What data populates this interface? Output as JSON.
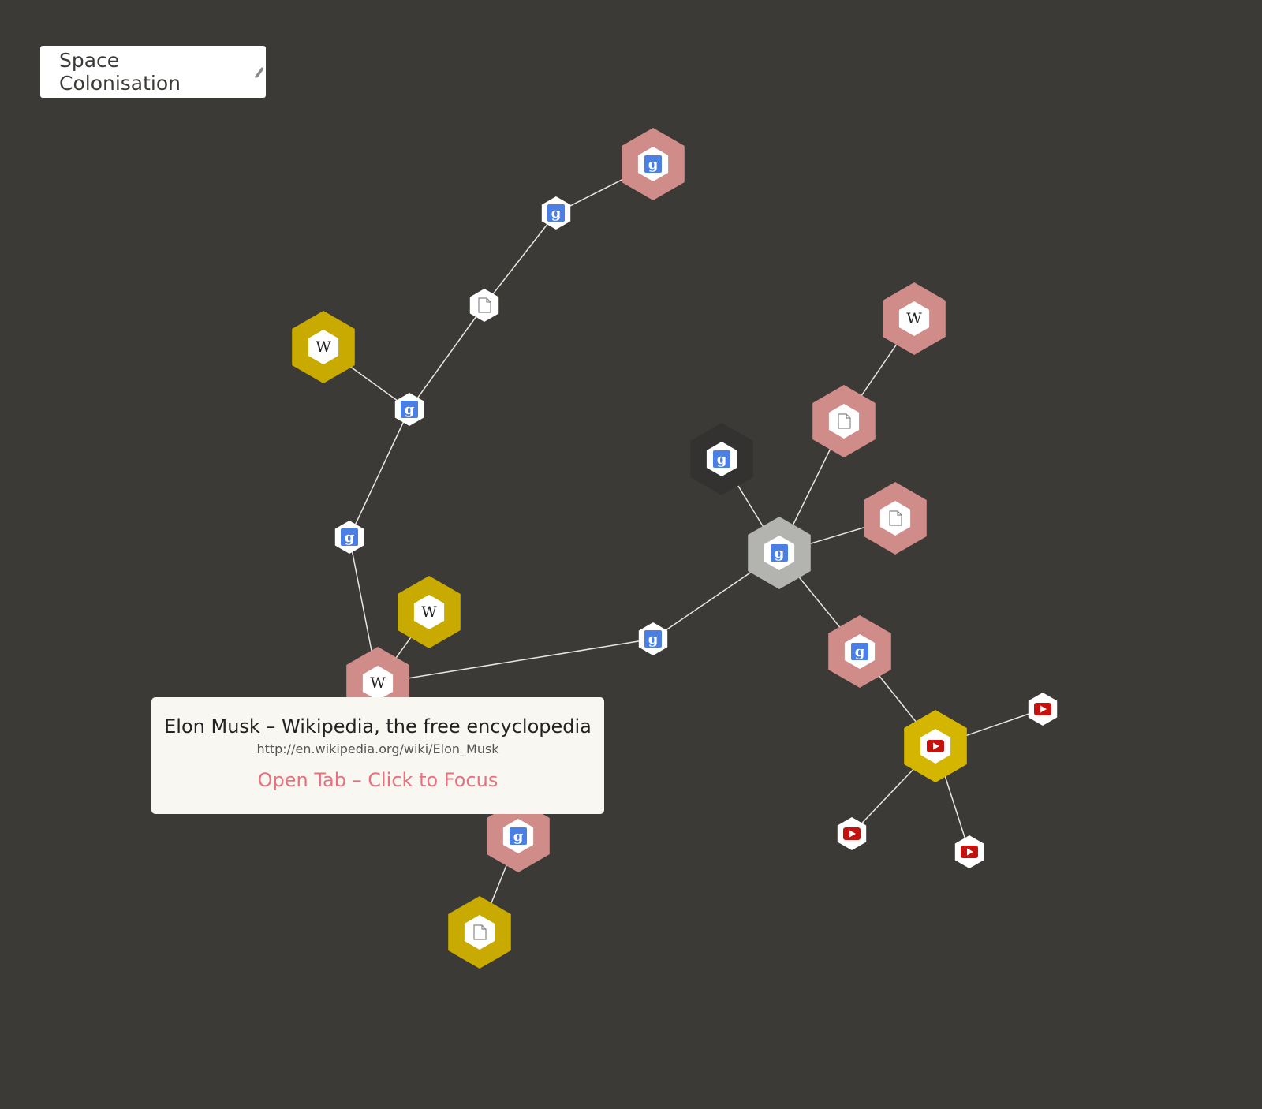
{
  "session": {
    "title": "Space Colonisation"
  },
  "tooltip": {
    "page_title": "Elon Musk – Wikipedia, the free encyclopedia",
    "url": "http://en.wikipedia.org/wiki/Elon_Musk",
    "action": "Open Tab – Click to Focus"
  },
  "colors": {
    "background": "#3c3a36",
    "pink": "#d08c89",
    "gold": "#c8aa00",
    "gold_bright": "#d4b500",
    "dark": "#333230",
    "grey": "#b3b3b0",
    "google_blue": "#4a7fe6",
    "youtube_red": "#c4120e",
    "link": "#e8e6e0",
    "action": "#e9707e"
  },
  "nodes": [
    {
      "id": "n1",
      "icon": "google",
      "state": "pink"
    },
    {
      "id": "n2",
      "icon": "google",
      "state": "small"
    },
    {
      "id": "n3",
      "icon": "page",
      "state": "small"
    },
    {
      "id": "n4",
      "icon": "wikipedia",
      "state": "gold"
    },
    {
      "id": "n5",
      "icon": "google",
      "state": "small"
    },
    {
      "id": "n6",
      "icon": "google",
      "state": "small"
    },
    {
      "id": "n7",
      "icon": "wikipedia",
      "state": "gold"
    },
    {
      "id": "n8",
      "icon": "wikipedia",
      "state": "pink"
    },
    {
      "id": "n9",
      "icon": "google",
      "state": "small"
    },
    {
      "id": "n10",
      "icon": "google",
      "state": "grey"
    },
    {
      "id": "n11",
      "icon": "google",
      "state": "dark"
    },
    {
      "id": "n12",
      "icon": "wikipedia",
      "state": "pink"
    },
    {
      "id": "n13",
      "icon": "page",
      "state": "pink"
    },
    {
      "id": "n14",
      "icon": "page",
      "state": "pink"
    },
    {
      "id": "n15",
      "icon": "google",
      "state": "pink"
    },
    {
      "id": "n16",
      "icon": "youtube",
      "state": "gold-bright"
    },
    {
      "id": "n17",
      "icon": "youtube",
      "state": "small"
    },
    {
      "id": "n18",
      "icon": "youtube",
      "state": "small"
    },
    {
      "id": "n19",
      "icon": "youtube",
      "state": "small"
    },
    {
      "id": "n20",
      "icon": "google",
      "state": "pink"
    },
    {
      "id": "n21",
      "icon": "page",
      "state": "gold"
    }
  ],
  "links": [
    [
      "n1",
      "n2"
    ],
    [
      "n2",
      "n3"
    ],
    [
      "n3",
      "n5"
    ],
    [
      "n4",
      "n5"
    ],
    [
      "n5",
      "n6"
    ],
    [
      "n6",
      "n8"
    ],
    [
      "n7",
      "n8"
    ],
    [
      "n8",
      "n9"
    ],
    [
      "n9",
      "n10"
    ],
    [
      "n10",
      "n11"
    ],
    [
      "n10",
      "n13"
    ],
    [
      "n13",
      "n12"
    ],
    [
      "n10",
      "n14"
    ],
    [
      "n10",
      "n15"
    ],
    [
      "n15",
      "n16"
    ],
    [
      "n16",
      "n17"
    ],
    [
      "n16",
      "n18"
    ],
    [
      "n16",
      "n19"
    ],
    [
      "n8",
      "n20"
    ],
    [
      "n20",
      "n21"
    ]
  ]
}
